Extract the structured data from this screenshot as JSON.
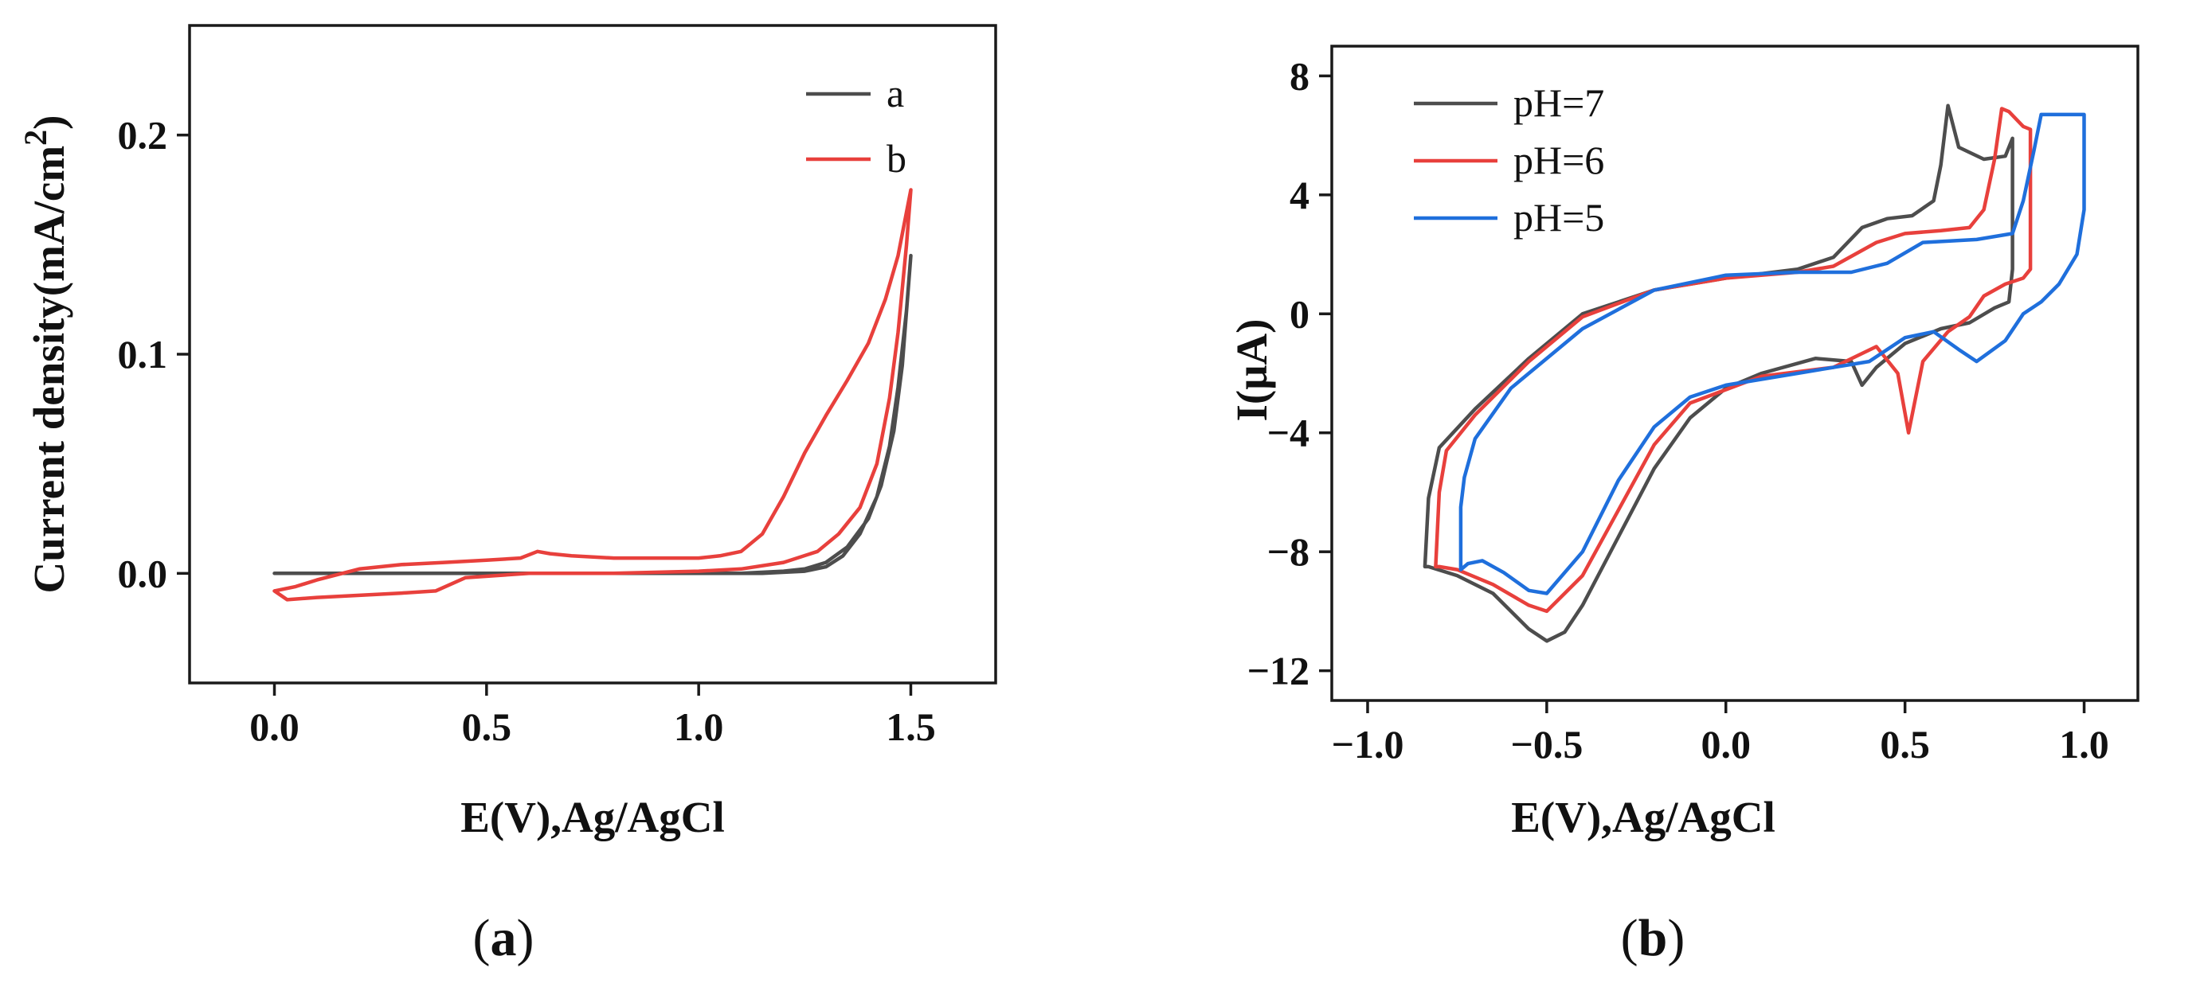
{
  "chart_data": [
    {
      "type": "line",
      "panel_label": "a",
      "panel_caption": "(a)",
      "title": "",
      "xlabel": "E(V),Ag/AgCl",
      "ylabel": "Current density(mA/cm",
      "ylabel_sup": "2",
      "ylabel_close": ")",
      "xlim": [
        -0.2,
        1.7
      ],
      "ylim": [
        -0.05,
        0.25
      ],
      "xticks": [
        0.0,
        0.5,
        1.0,
        1.5
      ],
      "xtick_labels": [
        "0.0",
        "0.5",
        "1.0",
        "1.5"
      ],
      "yticks": [
        0.0,
        0.1,
        0.2
      ],
      "ytick_labels": [
        "0.0",
        "0.1",
        "0.2"
      ],
      "legend_position": "top-right",
      "series": [
        {
          "name": "a",
          "color": "#4d4d4d",
          "x": [
            0.0,
            0.3,
            0.6,
            0.9,
            1.1,
            1.2,
            1.25,
            1.3,
            1.35,
            1.4,
            1.43,
            1.46,
            1.48,
            1.5,
            1.49,
            1.47,
            1.45,
            1.42,
            1.38,
            1.34,
            1.3,
            1.25,
            1.15,
            1.0,
            0.7,
            0.4,
            0.1,
            0.0
          ],
          "y": [
            0.0,
            0.0,
            0.0,
            0.0,
            0.0,
            0.001,
            0.002,
            0.005,
            0.012,
            0.025,
            0.04,
            0.065,
            0.095,
            0.145,
            0.12,
            0.085,
            0.058,
            0.035,
            0.018,
            0.008,
            0.003,
            0.001,
            0.0,
            0.0,
            0.0,
            0.0,
            0.0,
            0.0
          ]
        },
        {
          "name": "b",
          "color": "#e8403c",
          "x": [
            0.0,
            0.05,
            0.1,
            0.2,
            0.3,
            0.4,
            0.5,
            0.58,
            0.62,
            0.65,
            0.7,
            0.8,
            0.9,
            1.0,
            1.05,
            1.1,
            1.15,
            1.2,
            1.25,
            1.3,
            1.35,
            1.4,
            1.44,
            1.47,
            1.5,
            1.49,
            1.47,
            1.45,
            1.42,
            1.38,
            1.33,
            1.28,
            1.2,
            1.1,
            1.0,
            0.8,
            0.6,
            0.45,
            0.38,
            0.3,
            0.2,
            0.1,
            0.03,
            0.0
          ],
          "y": [
            -0.008,
            -0.006,
            -0.003,
            0.002,
            0.004,
            0.005,
            0.006,
            0.007,
            0.01,
            0.009,
            0.008,
            0.007,
            0.007,
            0.007,
            0.008,
            0.01,
            0.018,
            0.035,
            0.055,
            0.072,
            0.088,
            0.105,
            0.125,
            0.145,
            0.175,
            0.15,
            0.11,
            0.08,
            0.05,
            0.03,
            0.018,
            0.01,
            0.005,
            0.002,
            0.001,
            0.0,
            0.0,
            -0.002,
            -0.008,
            -0.009,
            -0.01,
            -0.011,
            -0.012,
            -0.008
          ]
        }
      ]
    },
    {
      "type": "line",
      "panel_label": "b",
      "panel_caption": "(b)",
      "title": "",
      "xlabel": "E(V),Ag/AgCl",
      "ylabel": "I(μA)",
      "xlim": [
        -1.1,
        1.15
      ],
      "ylim": [
        -13,
        9
      ],
      "xticks": [
        -1.0,
        -0.5,
        0.0,
        0.5,
        1.0
      ],
      "xtick_labels": [
        "−1.0",
        "−0.5",
        "0.0",
        "0.5",
        "1.0"
      ],
      "yticks": [
        8,
        4,
        0,
        -4,
        -8,
        -12
      ],
      "ytick_labels": [
        "8",
        "4",
        "0",
        "−4",
        "−8",
        "−12"
      ],
      "legend_position": "top-left",
      "series": [
        {
          "name": "pH=7",
          "color": "#4d4d4d",
          "x": [
            -0.83,
            -0.8,
            -0.7,
            -0.55,
            -0.4,
            -0.2,
            0.0,
            0.2,
            0.3,
            0.38,
            0.45,
            0.52,
            0.58,
            0.6,
            0.62,
            0.65,
            0.72,
            0.78,
            0.8,
            0.8,
            0.79,
            0.75,
            0.68,
            0.6,
            0.5,
            0.42,
            0.38,
            0.35,
            0.25,
            0.1,
            0.0,
            -0.1,
            -0.2,
            -0.3,
            -0.4,
            -0.45,
            -0.5,
            -0.55,
            -0.65,
            -0.75,
            -0.83,
            -0.84,
            -0.83
          ],
          "y": [
            -6.2,
            -4.5,
            -3.2,
            -1.5,
            0.0,
            0.8,
            1.2,
            1.5,
            1.9,
            2.9,
            3.2,
            3.3,
            3.8,
            5.0,
            7.0,
            5.6,
            5.2,
            5.3,
            5.9,
            1.5,
            0.4,
            0.2,
            -0.3,
            -0.5,
            -1.0,
            -1.8,
            -2.4,
            -1.6,
            -1.5,
            -2.0,
            -2.5,
            -3.5,
            -5.2,
            -7.5,
            -9.8,
            -10.7,
            -11.0,
            -10.6,
            -9.4,
            -8.8,
            -8.5,
            -8.5,
            -6.2
          ]
        },
        {
          "name": "pH=6",
          "color": "#e8403c",
          "x": [
            -0.8,
            -0.78,
            -0.7,
            -0.55,
            -0.4,
            -0.2,
            0.0,
            0.2,
            0.3,
            0.42,
            0.5,
            0.6,
            0.68,
            0.72,
            0.75,
            0.77,
            0.79,
            0.83,
            0.85,
            0.85,
            0.83,
            0.78,
            0.72,
            0.68,
            0.62,
            0.55,
            0.51,
            0.48,
            0.42,
            0.3,
            0.1,
            -0.1,
            -0.2,
            -0.3,
            -0.4,
            -0.5,
            -0.55,
            -0.65,
            -0.75,
            -0.8,
            -0.81,
            -0.8
          ],
          "y": [
            -6.0,
            -4.6,
            -3.4,
            -1.6,
            -0.1,
            0.8,
            1.2,
            1.4,
            1.6,
            2.4,
            2.7,
            2.8,
            2.9,
            3.5,
            5.2,
            6.9,
            6.8,
            6.3,
            6.2,
            1.5,
            1.2,
            1.0,
            0.6,
            -0.1,
            -0.6,
            -1.6,
            -4.0,
            -2.0,
            -1.1,
            -1.8,
            -2.1,
            -3.0,
            -4.4,
            -6.6,
            -8.8,
            -10.0,
            -9.8,
            -9.1,
            -8.6,
            -8.5,
            -8.5,
            -6.0
          ]
        },
        {
          "name": "pH=5",
          "color": "#1f6fdc",
          "x": [
            -0.74,
            -0.73,
            -0.7,
            -0.6,
            -0.4,
            -0.2,
            0.0,
            0.2,
            0.35,
            0.45,
            0.55,
            0.7,
            0.8,
            0.83,
            0.86,
            0.88,
            0.92,
            1.0,
            1.0,
            0.98,
            0.93,
            0.88,
            0.83,
            0.78,
            0.7,
            0.65,
            0.58,
            0.5,
            0.4,
            0.2,
            0.0,
            -0.1,
            -0.2,
            -0.3,
            -0.4,
            -0.5,
            -0.55,
            -0.62,
            -0.68,
            -0.72,
            -0.74,
            -0.74
          ],
          "y": [
            -6.5,
            -5.5,
            -4.2,
            -2.5,
            -0.5,
            0.8,
            1.3,
            1.4,
            1.4,
            1.7,
            2.4,
            2.5,
            2.7,
            3.8,
            5.5,
            6.7,
            6.7,
            6.7,
            3.5,
            2.0,
            1.0,
            0.4,
            0.0,
            -0.9,
            -1.6,
            -1.2,
            -0.6,
            -0.8,
            -1.6,
            -2.0,
            -2.4,
            -2.8,
            -3.8,
            -5.6,
            -8.0,
            -9.4,
            -9.3,
            -8.7,
            -8.3,
            -8.4,
            -8.6,
            -6.5
          ]
        }
      ]
    }
  ]
}
